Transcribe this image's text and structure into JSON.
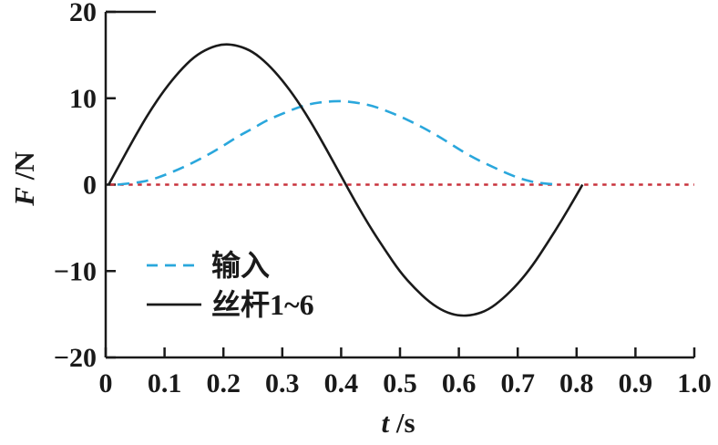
{
  "figure": {
    "background": "#ffffff",
    "ylabel_var": "F",
    "ylabel_unit": " /N",
    "xlabel_var": "t",
    "xlabel_unit": " /s"
  },
  "legend": {
    "position": "inside-lower-left",
    "items": [
      {
        "label": "输入",
        "color": "#2aa7dc",
        "style": "dashed"
      },
      {
        "label": "丝杆1~6",
        "color": "#1a1a1a",
        "style": "solid"
      }
    ]
  },
  "chart_data": {
    "type": "line",
    "title": "",
    "xlabel": "t/s",
    "ylabel": "F/N",
    "xlim": [
      0,
      1.0
    ],
    "ylim": [
      -20,
      20
    ],
    "grid": false,
    "axis_color": "#1a1a1a",
    "xticks": {
      "values": [
        0,
        0.1,
        0.2,
        0.3,
        0.4,
        0.5,
        0.6,
        0.7,
        0.8,
        0.9,
        1.0
      ],
      "labels": [
        "0",
        "0.1",
        "0.2",
        "0.3",
        "0.4",
        "0.5",
        "0.6",
        "0.7",
        "0.8",
        "0.9",
        "1.0"
      ]
    },
    "yticks": {
      "values": [
        -20,
        -10,
        0,
        10,
        20
      ],
      "labels": [
        "−20",
        "−10",
        "0",
        "10",
        "20"
      ]
    },
    "zero_line": {
      "y": 0,
      "x_start": 0.008,
      "x_end": 1.0,
      "color": "#c8323c",
      "style": "dotted"
    },
    "series": [
      {
        "name": "输入",
        "color": "#2aa7dc",
        "style": "dashed",
        "points": [
          [
            0.02,
            0
          ],
          [
            0.05,
            0.2
          ],
          [
            0.075,
            0.5
          ],
          [
            0.1,
            1.1
          ],
          [
            0.125,
            1.8
          ],
          [
            0.15,
            2.6
          ],
          [
            0.175,
            3.5
          ],
          [
            0.2,
            4.5
          ],
          [
            0.225,
            5.6
          ],
          [
            0.25,
            6.5
          ],
          [
            0.275,
            7.5
          ],
          [
            0.3,
            8.2
          ],
          [
            0.325,
            8.9
          ],
          [
            0.35,
            9.4
          ],
          [
            0.375,
            9.6
          ],
          [
            0.4,
            9.7
          ],
          [
            0.425,
            9.5
          ],
          [
            0.45,
            9.2
          ],
          [
            0.475,
            8.6
          ],
          [
            0.5,
            7.9
          ],
          [
            0.525,
            7.1
          ],
          [
            0.55,
            6.2
          ],
          [
            0.575,
            5.2
          ],
          [
            0.6,
            4.1
          ],
          [
            0.625,
            3.1
          ],
          [
            0.65,
            2.3
          ],
          [
            0.675,
            1.5
          ],
          [
            0.7,
            0.8
          ],
          [
            0.725,
            0.3
          ],
          [
            0.75,
            0.1
          ],
          [
            0.77,
            0
          ]
        ]
      },
      {
        "name": "丝杆1~6",
        "color": "#1a1a1a",
        "style": "solid",
        "points": [
          [
            0.005,
            0
          ],
          [
            0.025,
            2.5
          ],
          [
            0.05,
            5.6
          ],
          [
            0.075,
            8.5
          ],
          [
            0.1,
            11.0
          ],
          [
            0.125,
            13.1
          ],
          [
            0.15,
            14.8
          ],
          [
            0.175,
            15.8
          ],
          [
            0.2,
            16.3
          ],
          [
            0.225,
            16.1
          ],
          [
            0.25,
            15.4
          ],
          [
            0.275,
            14.0
          ],
          [
            0.3,
            12.1
          ],
          [
            0.325,
            9.8
          ],
          [
            0.35,
            7.1
          ],
          [
            0.375,
            4.1
          ],
          [
            0.4,
            1.0
          ],
          [
            0.425,
            -2.1
          ],
          [
            0.45,
            -5.0
          ],
          [
            0.475,
            -7.6
          ],
          [
            0.5,
            -10.1
          ],
          [
            0.525,
            -12.0
          ],
          [
            0.55,
            -13.6
          ],
          [
            0.575,
            -14.7
          ],
          [
            0.6,
            -15.2
          ],
          [
            0.625,
            -15.1
          ],
          [
            0.65,
            -14.5
          ],
          [
            0.675,
            -13.2
          ],
          [
            0.7,
            -11.5
          ],
          [
            0.725,
            -9.4
          ],
          [
            0.75,
            -6.8
          ],
          [
            0.775,
            -4.1
          ],
          [
            0.8,
            -1.2
          ],
          [
            0.81,
            0
          ]
        ]
      }
    ]
  }
}
